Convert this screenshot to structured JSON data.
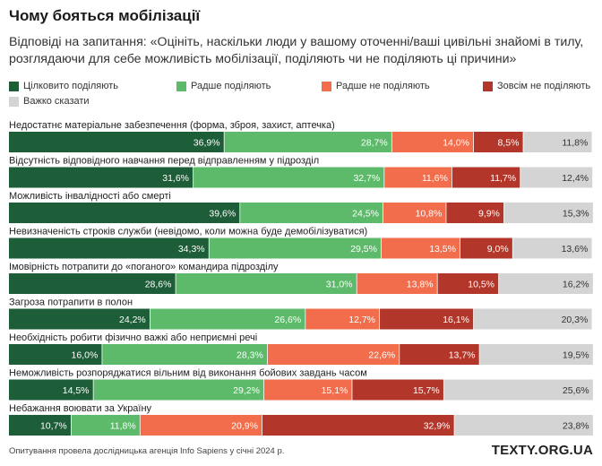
{
  "page": {
    "title": "Чому бояться мобілізації",
    "subtitle": "Відповіді на запитання: «Оцініть, наскільки люди у вашому оточенні/ваші цивільні знайомі в тилу, розглядаючи для себе можливість мобілізації, поділяють чи не поділяють ці причини»",
    "source_note": "Опитування провела дослідницька агенція Info Sapiens у січні 2024 р.",
    "brand": "TEXTY.ORG.UA"
  },
  "chart_data": {
    "type": "bar",
    "orientation": "horizontal",
    "stacked": true,
    "unit": "%",
    "xlim": [
      0,
      100
    ],
    "grid": false,
    "legend_position": "top",
    "categories": [
      "Недостатнє матеріальне забезпечення (форма, зброя, захист, аптечка)",
      "Відсутність відповідного навчання перед відправленням у підрозділ",
      "Можливість інвалідності або смерті",
      "Невизначеність строків служби (невідомо, коли можна буде демобілізуватися)",
      "Імовірність потрапити до «поганого» командира підрозділу",
      "Загроза потрапити в полон",
      "Необхідність робити фізично важкі або неприємні речі",
      "Неможливість розпоряджатися вільним від виконання бойових завдань часом",
      "Небажання воювати за Україну"
    ],
    "series": [
      {
        "name": "Цілковито поділяють",
        "color": "#1d5e38",
        "values": [
          36.9,
          31.6,
          39.6,
          34.3,
          28.6,
          24.2,
          16.0,
          14.5,
          10.7
        ]
      },
      {
        "name": "Радше поділяють",
        "color": "#5cba6a",
        "values": [
          28.7,
          32.7,
          24.5,
          29.5,
          31.0,
          26.6,
          28.3,
          29.2,
          11.8
        ]
      },
      {
        "name": "Радше не поділяють",
        "color": "#f26d4b",
        "values": [
          14.0,
          11.6,
          10.8,
          13.5,
          13.8,
          12.7,
          22.6,
          15.1,
          20.9
        ]
      },
      {
        "name": "Зовсім не поділяють",
        "color": "#b2372a",
        "values": [
          8.5,
          11.7,
          9.9,
          9.0,
          10.5,
          16.1,
          13.7,
          15.7,
          32.9
        ]
      },
      {
        "name": "Важко сказати",
        "color": "#d4d4d4",
        "values": [
          11.8,
          12.4,
          15.3,
          13.6,
          16.2,
          20.3,
          19.5,
          25.6,
          23.8
        ]
      }
    ]
  }
}
